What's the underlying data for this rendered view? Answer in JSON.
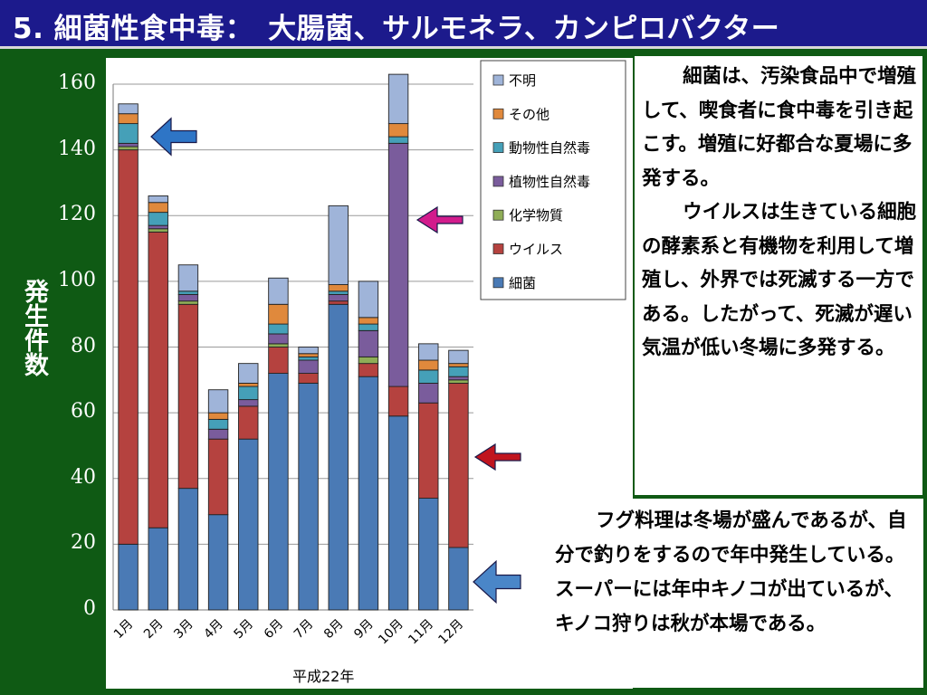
{
  "title": "5. 細菌性食中毒：　大腸菌、サルモネラ、カンピロバクター",
  "chart_data": {
    "type": "bar",
    "stacked": true,
    "title": "",
    "xlabel": "平成22年",
    "ylabel": "発生件数",
    "ylim": [
      0,
      160
    ],
    "yticks": [
      0,
      20,
      40,
      60,
      80,
      100,
      120,
      140,
      160
    ],
    "grid": true,
    "legend_position": "top-right",
    "categories": [
      "1月",
      "2月",
      "3月",
      "4月",
      "5月",
      "6月",
      "7月",
      "8月",
      "9月",
      "10月",
      "11月",
      "12月"
    ],
    "series": [
      {
        "name": "細菌",
        "color": "#4a7ab5",
        "values": [
          20,
          25,
          37,
          29,
          52,
          72,
          69,
          93,
          71,
          59,
          34,
          19
        ]
      },
      {
        "name": "ウイルス",
        "color": "#b5423f",
        "values": [
          120,
          90,
          56,
          23,
          10,
          8,
          3,
          1,
          4,
          9,
          29,
          50
        ]
      },
      {
        "name": "化学物質",
        "color": "#8fad57",
        "values": [
          1,
          1,
          1,
          0,
          0,
          1,
          0,
          0,
          2,
          0,
          0,
          1
        ]
      },
      {
        "name": "植物性自然毒",
        "color": "#7a5c9c",
        "values": [
          1,
          1,
          2,
          3,
          2,
          3,
          4,
          2,
          8,
          74,
          6,
          1
        ]
      },
      {
        "name": "動物性自然毒",
        "color": "#45a0b8",
        "values": [
          6,
          4,
          1,
          3,
          4,
          3,
          1,
          1,
          2,
          2,
          4,
          3
        ]
      },
      {
        "name": "その他",
        "color": "#e0893c",
        "values": [
          3,
          3,
          0,
          2,
          1,
          6,
          1,
          2,
          2,
          4,
          3,
          1
        ]
      },
      {
        "name": "不明",
        "color": "#9fb4d9",
        "values": [
          3,
          2,
          8,
          7,
          6,
          8,
          2,
          24,
          11,
          15,
          5,
          4
        ]
      }
    ],
    "legend_order": [
      "不明",
      "その他",
      "動物性自然毒",
      "植物性自然毒",
      "化学物質",
      "ウイルス",
      "細菌"
    ]
  },
  "arrows": [
    {
      "name": "blue-arrow-january",
      "color": "#2e75c6",
      "points_at": "1月"
    },
    {
      "name": "magenta-arrow-october",
      "color": "#d21c8c",
      "points_at": "10月"
    },
    {
      "name": "red-arrow-december",
      "color": "#c0141e",
      "points_at": "12月"
    },
    {
      "name": "blue-arrow-december-low",
      "color": "#4a86c8",
      "points_at": "12月"
    }
  ],
  "box1": {
    "para1": "細菌は、汚染食品中で増殖して、喫食者に食中毒を引き起こす。増殖に好都合な夏場に多発する。",
    "para2": "ウイルスは生きている細胞の酵素系と有機物を利用して増殖し、外界では死滅する一方である。したがって、死滅が遅い気温が低い冬場に多発する。"
  },
  "box2": {
    "para1": "フグ料理は冬場が盛んであるが、自分で釣りをするので年中発生している。スーパーには年中キノコが出ているが、キノコ狩りは秋が本場である。"
  }
}
